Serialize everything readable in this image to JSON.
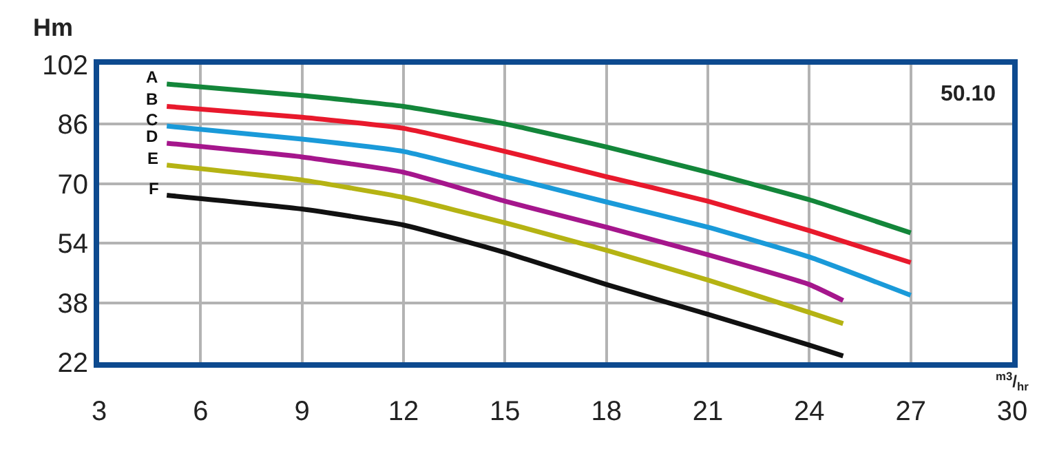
{
  "chart_data": {
    "type": "line",
    "xlabel": "$^{m3}$/$_{hr}$",
    "ylabel": "Hm",
    "x": [
      5,
      9,
      12,
      15,
      18,
      21,
      24,
      27
    ],
    "series": [
      {
        "name": "A",
        "color": "#13863a",
        "values": [
          96.8,
          93.7,
          90.8,
          86.1,
          79.9,
          73.1,
          65.7,
          56.8
        ]
      },
      {
        "name": "B",
        "color": "#e8192c",
        "values": [
          90.8,
          87.9,
          84.9,
          78.7,
          71.9,
          65.3,
          57.4,
          48.8
        ]
      },
      {
        "name": "C",
        "color": "#1a9ad9",
        "values": [
          85.5,
          82.0,
          78.7,
          71.9,
          65.1,
          58.3,
          50.3,
          40.0
        ]
      },
      {
        "name": "D",
        "color": "#a5168c",
        "x": [
          5,
          9,
          12,
          15,
          18,
          21,
          24,
          25
        ],
        "values": [
          80.9,
          77.2,
          73.1,
          65.3,
          58.3,
          50.9,
          42.9,
          38.6
        ]
      },
      {
        "name": "E",
        "color": "#b5b313",
        "x": [
          5,
          9,
          12,
          15,
          18,
          21,
          24,
          25
        ],
        "values": [
          75.0,
          71.0,
          66.3,
          59.5,
          52.1,
          44.1,
          35.4,
          32.4
        ]
      },
      {
        "name": "F",
        "color": "#111111",
        "x": [
          5,
          9,
          12,
          15,
          18,
          21,
          24,
          25
        ],
        "values": [
          66.9,
          63.2,
          58.9,
          51.5,
          42.9,
          34.9,
          26.6,
          23.7
        ]
      }
    ],
    "annotations": [
      "50.10"
    ],
    "xlim": [
      3,
      30
    ],
    "xticks": [
      3,
      6,
      9,
      12,
      15,
      18,
      21,
      24,
      27,
      30
    ],
    "ylim": [
      22,
      102
    ],
    "yticks": [
      22,
      38,
      54,
      70,
      86,
      102
    ],
    "grid": true,
    "legend": false,
    "marker": "none",
    "line_style": "solid"
  }
}
